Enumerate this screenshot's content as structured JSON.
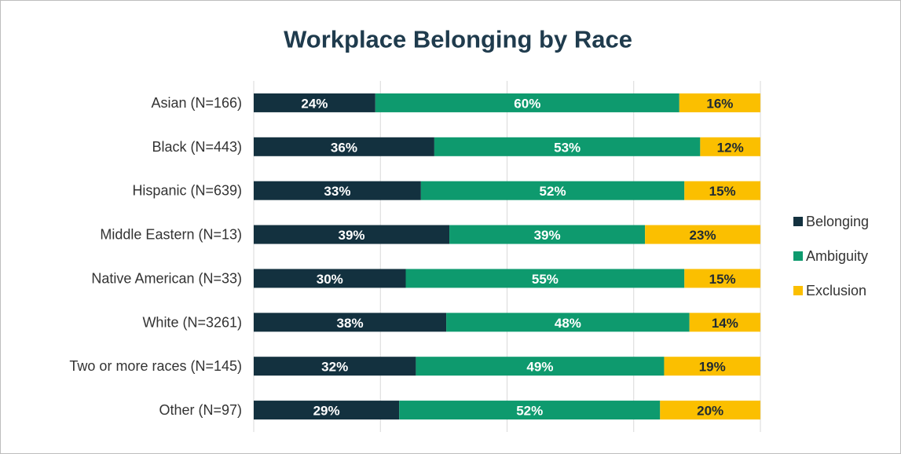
{
  "chart_data": {
    "type": "bar",
    "orientation": "horizontal",
    "stacked": "percent",
    "title": "Workplace Belonging by Race",
    "categories": [
      "Asian (N=166)",
      "Black (N=443)",
      "Hispanic (N=639)",
      "Middle Eastern (N=13)",
      "Native American (N=33)",
      "White (N=3261)",
      "Two or more races (N=145)",
      "Other (N=97)"
    ],
    "series": [
      {
        "name": "Belonging",
        "color": "#13313f",
        "label_color": "#ffffff",
        "values": [
          24,
          36,
          33,
          39,
          30,
          38,
          32,
          29
        ],
        "value_labels": [
          "24%",
          "36%",
          "33%",
          "39%",
          "30%",
          "38%",
          "32%",
          "29%"
        ]
      },
      {
        "name": "Ambiguity",
        "color": "#0e9a6e",
        "label_color": "#ffffff",
        "values": [
          60,
          53,
          52,
          39,
          55,
          48,
          49,
          52
        ],
        "value_labels": [
          "60%",
          "53%",
          "52%",
          "39%",
          "55%",
          "48%",
          "49%",
          "52%"
        ]
      },
      {
        "name": "Exclusion",
        "color": "#fbbf00",
        "label_color": "#1f2a33",
        "values": [
          16,
          12,
          15,
          23,
          15,
          14,
          19,
          20
        ],
        "value_labels": [
          "16%",
          "12%",
          "15%",
          "23%",
          "15%",
          "14%",
          "19%",
          "20%"
        ]
      }
    ],
    "xlim": [
      0,
      100
    ],
    "xticks": [
      0,
      25,
      50,
      75,
      100
    ],
    "grid": true,
    "legend": "right"
  }
}
